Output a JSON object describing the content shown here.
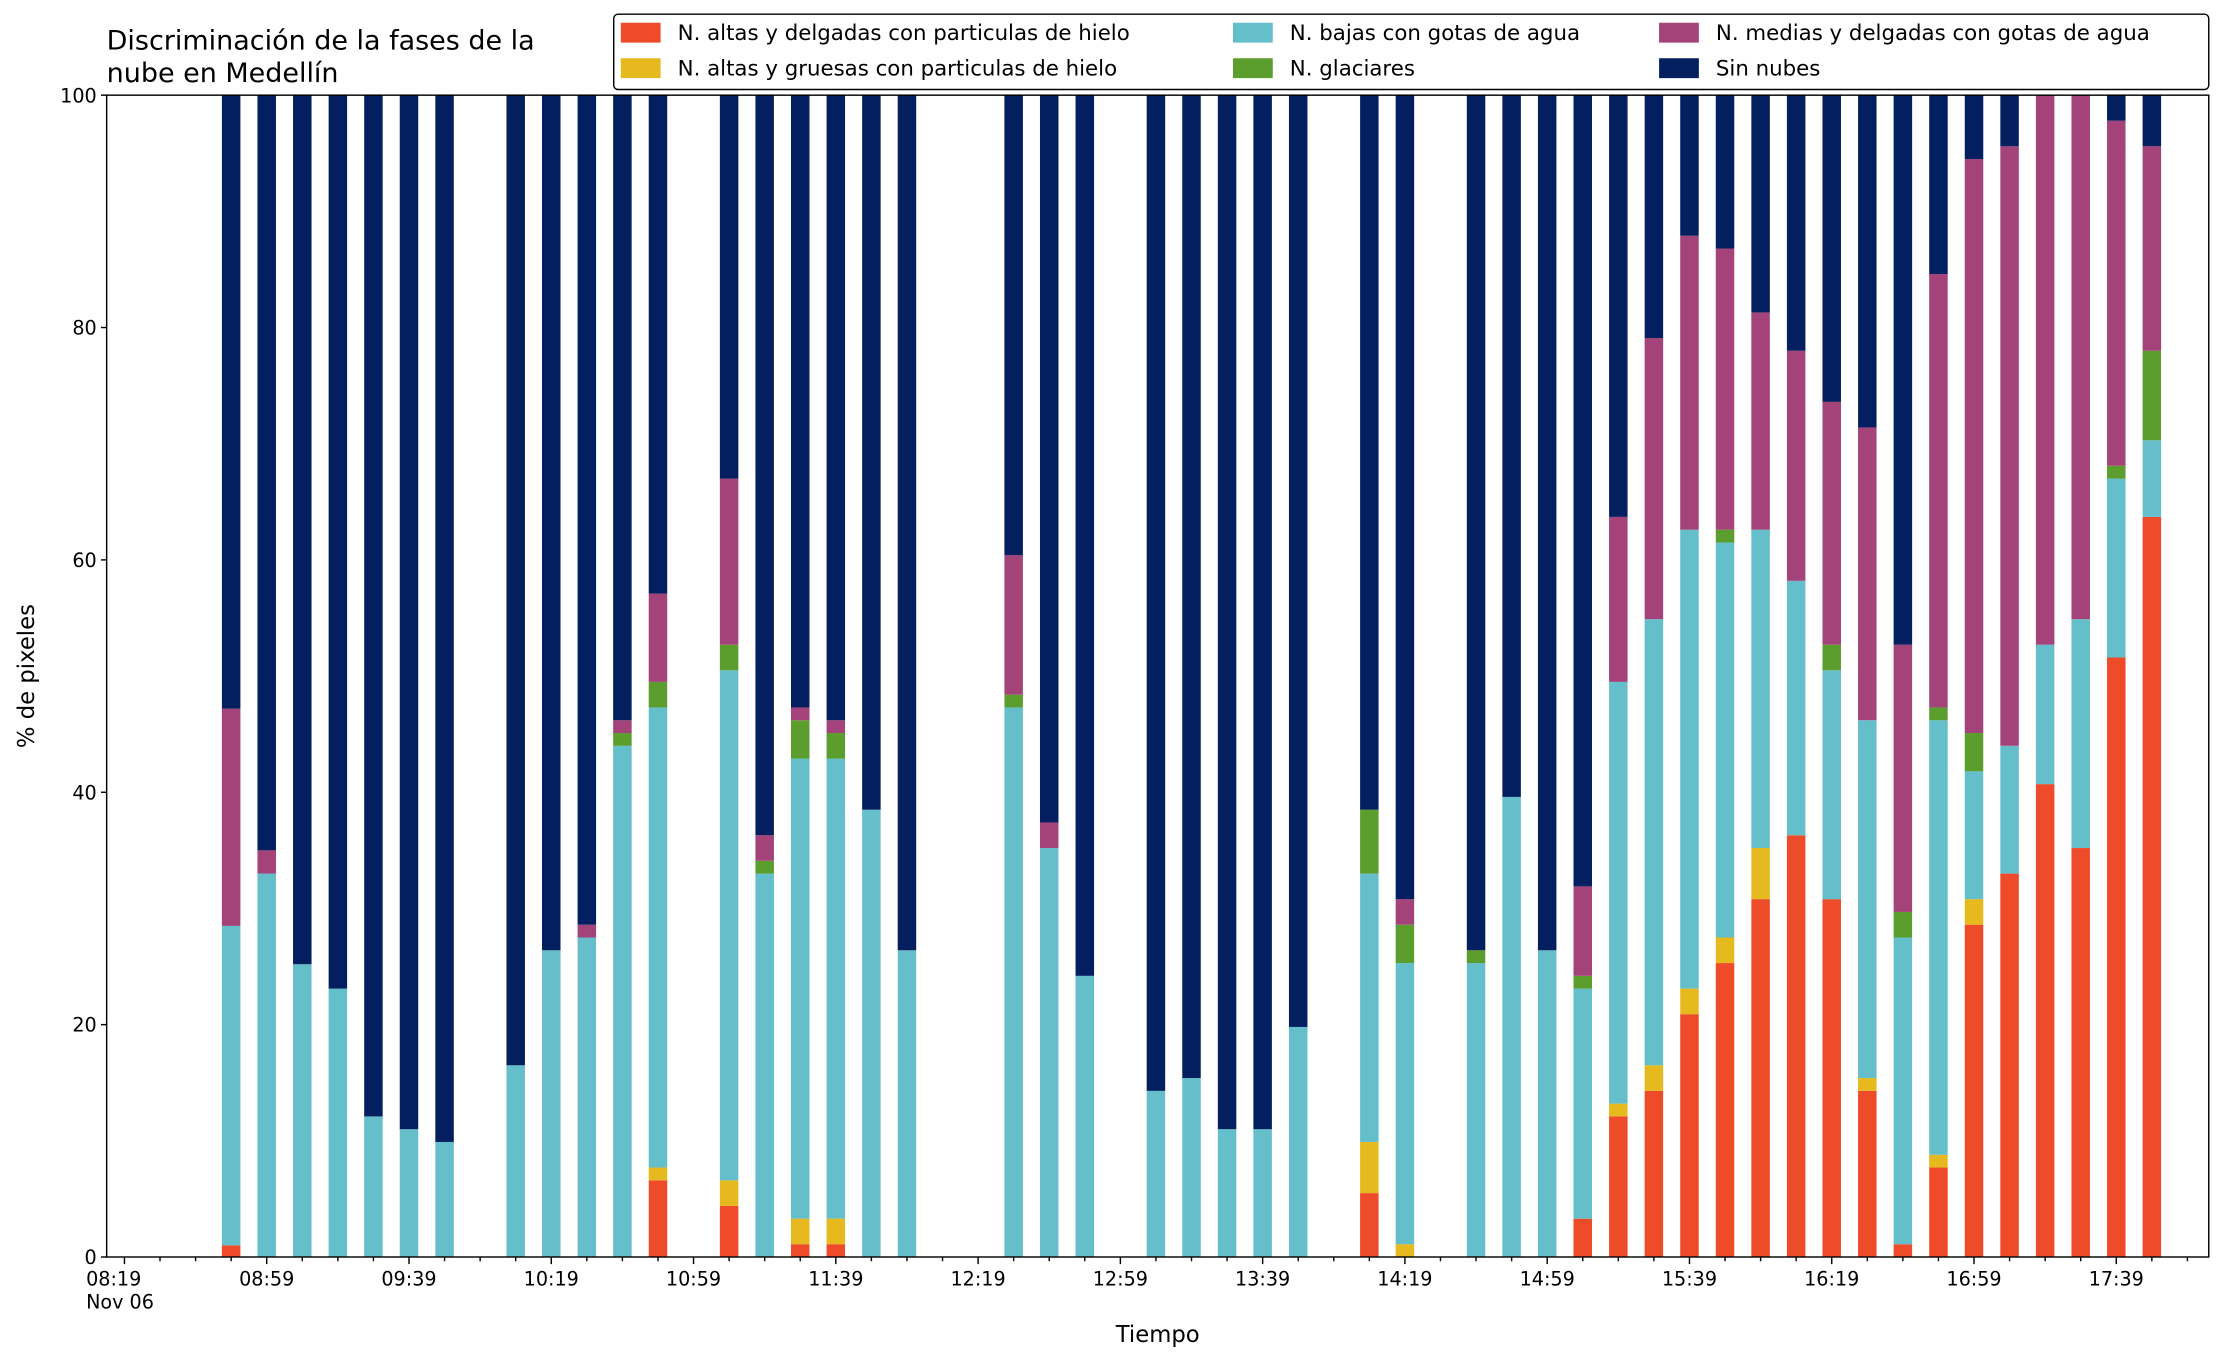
{
  "chart_data": {
    "type": "stacked_bar",
    "title": "Discriminación de la fases de la\nnube en Medellín",
    "xlabel": "Tiempo",
    "ylabel": "% de pixeles",
    "x": [
      "08:49",
      "08:59",
      "09:09",
      "09:19",
      "09:29",
      "09:39",
      "09:49",
      "10:09",
      "10:19",
      "10:29",
      "10:39",
      "10:49",
      "11:09",
      "11:19",
      "11:29",
      "11:39",
      "11:49",
      "11:59",
      "12:29",
      "12:39",
      "12:49",
      "13:09",
      "13:19",
      "13:29",
      "13:39",
      "13:49",
      "14:09",
      "14:19",
      "14:39",
      "14:49",
      "14:59",
      "15:09",
      "15:19",
      "15:29",
      "15:39",
      "15:49",
      "15:59",
      "16:09",
      "16:19",
      "16:29",
      "16:39",
      "16:49",
      "16:59",
      "17:09",
      "17:19",
      "17:29",
      "17:39",
      "17:49"
    ],
    "series": [
      {
        "name": "N. altas y delgadas con particulas de hielo",
        "color": "#ee4b2b",
        "values": [
          1,
          0,
          0,
          0,
          0,
          0,
          0,
          0,
          0,
          0,
          0,
          6.6,
          4.4,
          0,
          1.1,
          1.1,
          0,
          0,
          0,
          0,
          0,
          0,
          0,
          0,
          0,
          0,
          5.5,
          0,
          0,
          0,
          0,
          3.3,
          12.1,
          14.3,
          20.9,
          25.3,
          30.8,
          36.3,
          30.8,
          14.3,
          1.1,
          7.7,
          28.6,
          33,
          40.7,
          35.2,
          51.6,
          63.7
        ]
      },
      {
        "name": "N. altas y gruesas con particulas de hielo",
        "color": "#e6b91e",
        "values": [
          0,
          0,
          0,
          0,
          0,
          0,
          0,
          0,
          0,
          0,
          0,
          1.1,
          2.2,
          0,
          2.2,
          2.2,
          0,
          0,
          0,
          0,
          0,
          0,
          0,
          0,
          0,
          0,
          4.4,
          1.1,
          0,
          0,
          0,
          0,
          1.1,
          2.2,
          2.2,
          2.2,
          4.4,
          0,
          0,
          1.1,
          0,
          1.1,
          2.2,
          0,
          0,
          0,
          0,
          0
        ]
      },
      {
        "name": "N. bajas con gotas de agua",
        "color": "#65bfca",
        "values": [
          27.5,
          33,
          25.2,
          23.1,
          12.1,
          11,
          9.9,
          16.5,
          26.4,
          27.5,
          44,
          39.6,
          43.9,
          33,
          39.6,
          39.6,
          38.5,
          26.4,
          47.3,
          35.2,
          24.2,
          14.3,
          15.4,
          11,
          11,
          19.8,
          23.1,
          24.2,
          25.3,
          39.6,
          26.4,
          19.8,
          36.3,
          38.4,
          39.5,
          34,
          27.4,
          21.9,
          19.7,
          30.8,
          26.4,
          37.4,
          11,
          11,
          12,
          19.7,
          15.4,
          6.6
        ]
      },
      {
        "name": "N. glaciares",
        "color": "#5c9e2e",
        "values": [
          0,
          0,
          0,
          0,
          0,
          0,
          0,
          0,
          0,
          0,
          1.1,
          2.2,
          2.2,
          1.1,
          3.3,
          2.2,
          0,
          0,
          1.1,
          0,
          0,
          0,
          0,
          0,
          0,
          0,
          5.5,
          3.3,
          1.1,
          0,
          0,
          1.1,
          0,
          0,
          0,
          1.1,
          0,
          0,
          2.2,
          0,
          2.2,
          1.1,
          3.3,
          0,
          0,
          0,
          1.1,
          7.7
        ]
      },
      {
        "name": "N. medias y delgadas con gotas de agua",
        "color": "#a3437a",
        "values": [
          18.7,
          2,
          0,
          0,
          0,
          0,
          0,
          0,
          0,
          1.1,
          1.1,
          7.6,
          14.3,
          2.2,
          1.1,
          1.1,
          0,
          0,
          12,
          2.2,
          0,
          0,
          0,
          0,
          0,
          0,
          0,
          2.2,
          0,
          0,
          0,
          7.7,
          14.2,
          24.2,
          25.3,
          24.2,
          18.7,
          19.8,
          20.9,
          25.2,
          23,
          37.3,
          49.4,
          51.6,
          47.3,
          45.1,
          29.7,
          17.6
        ]
      },
      {
        "name": "Sin nubes",
        "color": "#041f60",
        "values": [
          52.8,
          65,
          74.8,
          76.9,
          87.9,
          89,
          90.1,
          83.5,
          73.6,
          71.4,
          53.8,
          42.9,
          33,
          63.7,
          52.7,
          53.8,
          61.5,
          73.6,
          39.6,
          62.6,
          75.8,
          85.7,
          84.6,
          89,
          89,
          80.2,
          61.5,
          69.2,
          73.6,
          60.4,
          73.6,
          68.1,
          36.3,
          20.9,
          12.1,
          13.2,
          18.7,
          22,
          26.4,
          28.6,
          47.3,
          15.4,
          5.5,
          4.4,
          0,
          0,
          2.2,
          4.4
        ]
      }
    ],
    "xlim": [
      "08:14",
      "18:05"
    ],
    "xticks": [
      {
        "value": "08:19",
        "label": "08:19\nNov 06"
      },
      "08:59",
      "09:39",
      "10:19",
      "10:59",
      "11:39",
      "12:19",
      "12:59",
      "13:39",
      "14:19",
      "14:59",
      "15:39",
      "16:19",
      "16:59",
      "17:39"
    ],
    "xminorticks": [
      "08:29",
      "08:39",
      "08:49",
      "09:09",
      "09:19",
      "09:29",
      "09:49",
      "09:59",
      "10:09",
      "10:29",
      "10:39",
      "10:49",
      "11:09",
      "11:19",
      "11:29",
      "11:49",
      "11:59",
      "12:09",
      "12:29",
      "12:39",
      "12:49",
      "13:09",
      "13:19",
      "13:29",
      "13:49",
      "13:59",
      "14:09",
      "14:29",
      "14:39",
      "14:49",
      "15:09",
      "15:19",
      "15:29",
      "15:49",
      "15:59",
      "16:09",
      "16:29",
      "16:39",
      "16:49",
      "17:09",
      "17:19",
      "17:29",
      "17:49",
      "17:59"
    ],
    "ylim": [
      0,
      100
    ],
    "yticks": [
      0,
      20,
      40,
      60,
      80,
      100
    ],
    "legend": "upper right",
    "legend_columns": 3
  }
}
